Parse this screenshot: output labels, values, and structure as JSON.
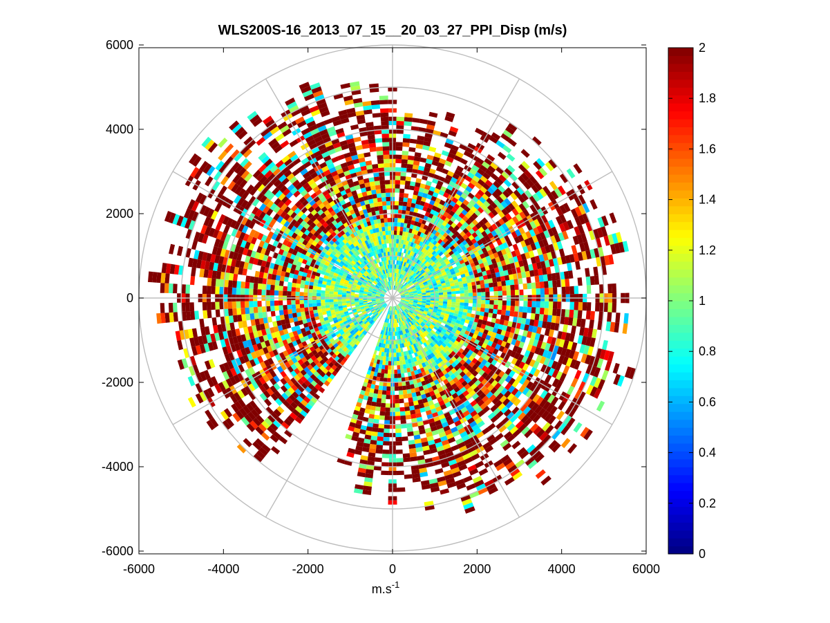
{
  "chart_data": {
    "type": "heatmap",
    "subtype": "polar-ppi",
    "title": "WLS200S-16_2013_07_15__20_03_27_PPI_Disp (m/s)",
    "xlabel": "m.s",
    "xlabel_superscript": "-1",
    "ylabel": "",
    "xlim": [
      -6000,
      6000
    ],
    "ylim": [
      -6000,
      6000
    ],
    "xticks": [
      -6000,
      -4000,
      -2000,
      0,
      2000,
      4000,
      6000
    ],
    "yticks": [
      -6000,
      -4000,
      -2000,
      0,
      2000,
      4000,
      6000
    ],
    "xtick_labels": [
      "-6000",
      "-4000",
      "-2000",
      "0",
      "2000",
      "4000",
      "6000"
    ],
    "ytick_labels": [
      "-6000",
      "-4000",
      "-2000",
      "0",
      "2000",
      "4000",
      "6000"
    ],
    "polar_grid": {
      "rings": [
        1000,
        2000,
        3000,
        4000,
        5000,
        6000
      ],
      "spokes_deg": [
        0,
        30,
        60,
        90,
        120,
        150,
        180,
        210,
        240,
        270,
        300,
        330
      ],
      "color": "#bdbdbd"
    },
    "colorbar": {
      "min": 0,
      "max": 2,
      "ticks": [
        0,
        0.2,
        0.4,
        0.6,
        0.8,
        1,
        1.2,
        1.4,
        1.6,
        1.8,
        2
      ],
      "tick_labels": [
        "0",
        "0.2",
        "0.4",
        "0.6",
        "0.8",
        "1",
        "1.2",
        "1.4",
        "1.6",
        "1.8",
        "2"
      ],
      "colormap": "jet"
    },
    "scan": {
      "gap_azimuth_deg": [
        200,
        215
      ],
      "range_gate_m": 100,
      "azimuth_step_deg": 2.5,
      "max_range_m": 6000,
      "cells": [
        {
          "az": 0,
          "r": 500,
          "v": 0.8
        },
        {
          "az": 45,
          "r": 3500,
          "v": 2.0
        },
        {
          "az": 90,
          "r": 4000,
          "v": 2.0
        },
        {
          "az": 180,
          "r": 4500,
          "v": 2.0
        },
        {
          "az": 270,
          "r": 4000,
          "v": 2.0
        },
        {
          "az": 315,
          "r": 3500,
          "v": 1.8
        },
        {
          "az": 135,
          "r": 2000,
          "v": 1.2
        },
        {
          "az": 225,
          "r": 2500,
          "v": 1.0
        }
      ]
    }
  }
}
